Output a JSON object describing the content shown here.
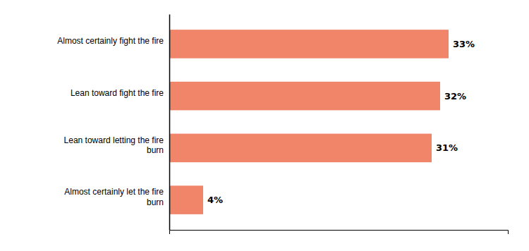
{
  "chart_data": {
    "type": "bar",
    "orientation": "horizontal",
    "categories": [
      "Almost certainly fight the fire",
      "Lean toward fight the fire",
      "Lean toward letting the fire\nburn",
      "Almost certainly let the fire\nburn"
    ],
    "values": [
      33,
      32,
      31,
      4
    ],
    "value_labels": [
      "33%",
      "32%",
      "31%",
      "4%"
    ],
    "color": "#F0856A",
    "xlim": [
      0,
      40
    ],
    "grid": false,
    "data_labels": true,
    "tick_labels": "y"
  }
}
